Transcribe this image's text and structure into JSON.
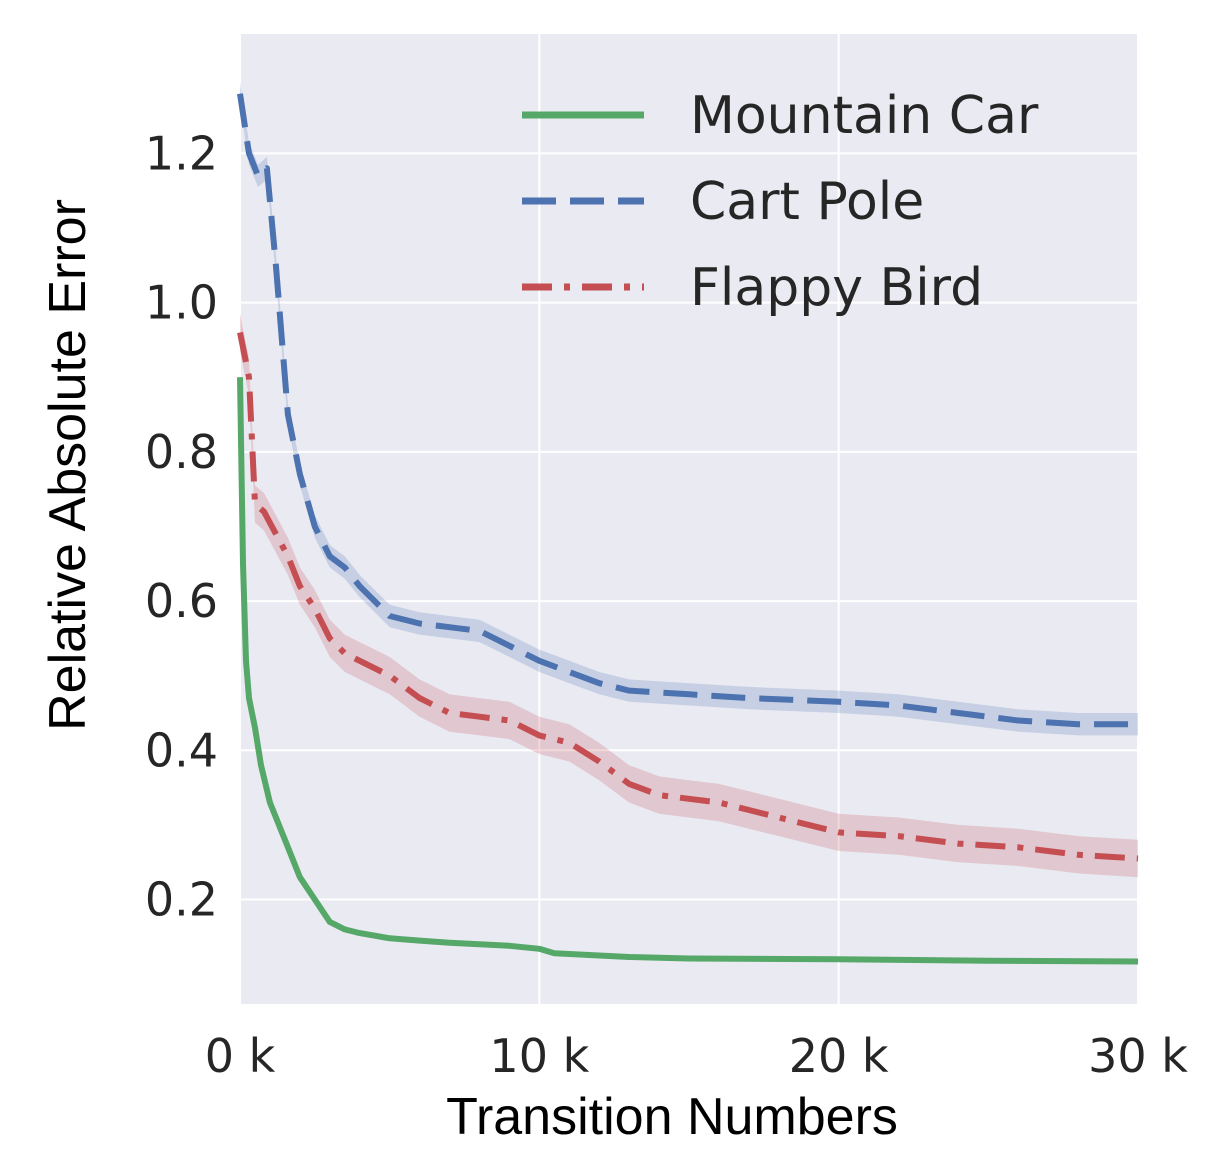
{
  "chart_data": {
    "type": "line",
    "xlabel": "Transition Numbers",
    "ylabel": "Relative Absolute Error",
    "xlim": [
      0,
      30000
    ],
    "ylim": [
      0.06,
      1.36
    ],
    "xticks": [
      0,
      10000,
      20000,
      30000
    ],
    "xtick_labels": [
      "0 k",
      "10 k",
      "20 k",
      "30 k"
    ],
    "yticks": [
      0.2,
      0.4,
      0.6,
      0.8,
      1.0,
      1.2
    ],
    "ytick_labels": [
      "0.2",
      "0.4",
      "0.6",
      "0.8",
      "1.0",
      "1.2"
    ],
    "grid": true,
    "legend_position": "top-right",
    "background": "#eaeaf2",
    "series": [
      {
        "name": "Mountain Car",
        "color": "#55a868",
        "style": "solid",
        "band": 0.0,
        "x": [
          0,
          100,
          200,
          300,
          500,
          700,
          1000,
          1500,
          2000,
          2500,
          3000,
          3500,
          4000,
          5000,
          6000,
          7000,
          8000,
          9000,
          10000,
          10500,
          11000,
          13000,
          15000,
          20000,
          25000,
          30000
        ],
        "y": [
          0.9,
          0.65,
          0.52,
          0.47,
          0.43,
          0.38,
          0.33,
          0.28,
          0.23,
          0.2,
          0.17,
          0.16,
          0.155,
          0.148,
          0.145,
          0.142,
          0.14,
          0.138,
          0.134,
          0.128,
          0.127,
          0.123,
          0.121,
          0.12,
          0.118,
          0.117
        ]
      },
      {
        "name": "Cart Pole",
        "color": "#4c72b0",
        "style": "dashed",
        "band": 0.015,
        "x": [
          0,
          300,
          600,
          900,
          1200,
          1600,
          2000,
          2500,
          3000,
          3500,
          4000,
          5000,
          6000,
          7000,
          8000,
          9000,
          10000,
          11000,
          12000,
          13000,
          15000,
          17000,
          20000,
          22000,
          24000,
          26000,
          28000,
          30000
        ],
        "y": [
          1.28,
          1.2,
          1.17,
          1.18,
          1.05,
          0.85,
          0.77,
          0.7,
          0.66,
          0.645,
          0.62,
          0.58,
          0.57,
          0.565,
          0.56,
          0.54,
          0.52,
          0.505,
          0.49,
          0.48,
          0.475,
          0.47,
          0.465,
          0.46,
          0.45,
          0.44,
          0.435,
          0.435
        ]
      },
      {
        "name": "Flappy Bird",
        "color": "#c44e52",
        "style": "dashdot",
        "band": 0.025,
        "x": [
          0,
          300,
          500,
          800,
          1200,
          1600,
          2000,
          2500,
          3000,
          3500,
          4000,
          5000,
          6000,
          7000,
          8000,
          9000,
          10000,
          11000,
          12000,
          13000,
          14000,
          15000,
          16000,
          17000,
          18000,
          20000,
          22000,
          24000,
          26000,
          28000,
          30000
        ],
        "y": [
          0.96,
          0.9,
          0.73,
          0.72,
          0.69,
          0.66,
          0.62,
          0.59,
          0.55,
          0.53,
          0.52,
          0.5,
          0.47,
          0.45,
          0.445,
          0.44,
          0.42,
          0.41,
          0.385,
          0.355,
          0.34,
          0.335,
          0.33,
          0.32,
          0.31,
          0.29,
          0.285,
          0.275,
          0.27,
          0.26,
          0.255
        ]
      }
    ]
  }
}
